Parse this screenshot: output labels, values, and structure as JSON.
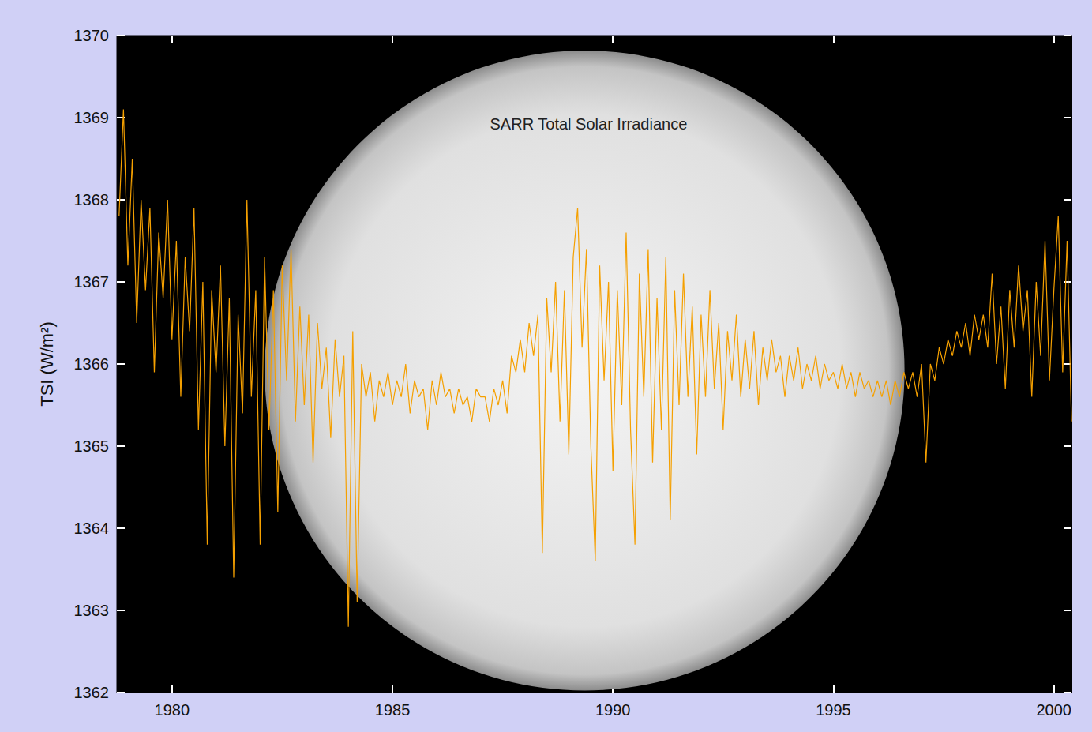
{
  "chart_data": {
    "type": "line",
    "title": "SARR Total Solar Irradiance",
    "ylabel": "TSI (W/m²)",
    "color": "#f5a000",
    "grid": false,
    "xlim": [
      1978.75,
      2000.4
    ],
    "xticks": [
      1980,
      1985,
      1990,
      1995,
      2000
    ],
    "ylim": [
      1362,
      1370
    ],
    "yticks": [
      1362,
      1363,
      1364,
      1365,
      1366,
      1367,
      1368,
      1369,
      1370
    ],
    "x": [
      1978.8,
      1978.9,
      1979.0,
      1979.1,
      1979.2,
      1979.3,
      1979.4,
      1979.5,
      1979.6,
      1979.7,
      1979.8,
      1979.9,
      1980.0,
      1980.1,
      1980.2,
      1980.3,
      1980.4,
      1980.5,
      1980.6,
      1980.7,
      1980.8,
      1980.9,
      1981.0,
      1981.1,
      1981.2,
      1981.3,
      1981.4,
      1981.5,
      1981.6,
      1981.7,
      1981.8,
      1981.9,
      1982.0,
      1982.1,
      1982.2,
      1982.3,
      1982.4,
      1982.5,
      1982.6,
      1982.7,
      1982.8,
      1982.9,
      1983.0,
      1983.1,
      1983.2,
      1983.3,
      1983.4,
      1983.5,
      1983.6,
      1983.7,
      1983.8,
      1983.9,
      1984.0,
      1984.1,
      1984.2,
      1984.3,
      1984.4,
      1984.5,
      1984.6,
      1984.7,
      1984.8,
      1984.9,
      1985.0,
      1985.1,
      1985.2,
      1985.3,
      1985.4,
      1985.5,
      1985.6,
      1985.7,
      1985.8,
      1985.9,
      1986.0,
      1986.1,
      1986.2,
      1986.3,
      1986.4,
      1986.5,
      1986.6,
      1986.7,
      1986.8,
      1986.9,
      1987.0,
      1987.1,
      1987.2,
      1987.3,
      1987.4,
      1987.5,
      1987.6,
      1987.7,
      1987.8,
      1987.9,
      1988.0,
      1988.1,
      1988.2,
      1988.3,
      1988.4,
      1988.5,
      1988.6,
      1988.7,
      1988.8,
      1988.9,
      1989.0,
      1989.1,
      1989.2,
      1989.3,
      1989.4,
      1989.5,
      1989.6,
      1989.7,
      1989.8,
      1989.9,
      1990.0,
      1990.1,
      1990.2,
      1990.3,
      1990.4,
      1990.5,
      1990.6,
      1990.7,
      1990.8,
      1990.9,
      1991.0,
      1991.1,
      1991.2,
      1991.3,
      1991.4,
      1991.5,
      1991.6,
      1991.7,
      1991.8,
      1991.9,
      1992.0,
      1992.1,
      1992.2,
      1992.3,
      1992.4,
      1992.5,
      1992.6,
      1992.7,
      1992.8,
      1992.9,
      1993.0,
      1993.1,
      1993.2,
      1993.3,
      1993.4,
      1993.5,
      1993.6,
      1993.7,
      1993.8,
      1993.9,
      1994.0,
      1994.1,
      1994.2,
      1994.3,
      1994.4,
      1994.5,
      1994.6,
      1994.7,
      1994.8,
      1994.9,
      1995.0,
      1995.1,
      1995.2,
      1995.3,
      1995.4,
      1995.5,
      1995.6,
      1995.7,
      1995.8,
      1995.9,
      1996.0,
      1996.1,
      1996.2,
      1996.3,
      1996.4,
      1996.5,
      1996.6,
      1996.7,
      1996.8,
      1996.9,
      1997.0,
      1997.1,
      1997.2,
      1997.3,
      1997.4,
      1997.5,
      1997.6,
      1997.7,
      1997.8,
      1997.9,
      1998.0,
      1998.1,
      1998.2,
      1998.3,
      1998.4,
      1998.5,
      1998.6,
      1998.7,
      1998.8,
      1998.9,
      1999.0,
      1999.1,
      1999.2,
      1999.3,
      1999.4,
      1999.5,
      1999.6,
      1999.7,
      1999.8,
      1999.9,
      2000.0,
      2000.1,
      2000.2,
      2000.3,
      2000.4
    ],
    "values": [
      1367.8,
      1369.1,
      1367.2,
      1368.5,
      1366.5,
      1368.0,
      1366.9,
      1367.9,
      1365.9,
      1367.6,
      1366.8,
      1368.0,
      1366.3,
      1367.5,
      1365.6,
      1367.3,
      1366.4,
      1367.9,
      1365.2,
      1367.0,
      1363.8,
      1366.9,
      1365.9,
      1367.2,
      1365.0,
      1366.8,
      1363.4,
      1366.6,
      1365.4,
      1368.0,
      1365.6,
      1366.9,
      1363.8,
      1367.3,
      1365.2,
      1366.9,
      1364.2,
      1367.2,
      1365.8,
      1367.4,
      1365.3,
      1366.7,
      1365.5,
      1366.6,
      1364.8,
      1366.5,
      1365.7,
      1366.2,
      1365.1,
      1366.3,
      1365.6,
      1366.1,
      1362.8,
      1366.4,
      1363.1,
      1366.0,
      1365.6,
      1365.9,
      1365.3,
      1365.8,
      1365.6,
      1365.9,
      1365.5,
      1365.8,
      1365.6,
      1366.0,
      1365.4,
      1365.8,
      1365.6,
      1365.7,
      1365.2,
      1365.8,
      1365.5,
      1365.9,
      1365.6,
      1365.7,
      1365.4,
      1365.7,
      1365.5,
      1365.6,
      1365.3,
      1365.7,
      1365.6,
      1365.6,
      1365.3,
      1365.7,
      1365.5,
      1365.8,
      1365.4,
      1366.1,
      1365.9,
      1366.3,
      1365.9,
      1366.5,
      1366.1,
      1366.6,
      1363.7,
      1366.8,
      1365.9,
      1367.0,
      1365.3,
      1366.9,
      1364.9,
      1367.3,
      1367.9,
      1366.2,
      1367.4,
      1365.0,
      1363.6,
      1367.2,
      1365.8,
      1367.0,
      1364.7,
      1366.9,
      1365.5,
      1367.6,
      1365.2,
      1363.8,
      1367.1,
      1365.6,
      1367.4,
      1364.8,
      1366.8,
      1365.2,
      1367.3,
      1364.1,
      1366.9,
      1365.5,
      1367.1,
      1365.6,
      1366.7,
      1364.9,
      1366.6,
      1365.6,
      1366.9,
      1365.7,
      1366.5,
      1365.2,
      1366.4,
      1365.8,
      1366.6,
      1365.6,
      1366.3,
      1365.7,
      1366.4,
      1365.5,
      1366.2,
      1365.8,
      1366.3,
      1365.9,
      1366.1,
      1365.6,
      1366.1,
      1365.8,
      1366.2,
      1365.7,
      1366.0,
      1365.8,
      1366.1,
      1365.7,
      1366.0,
      1365.8,
      1365.9,
      1365.7,
      1366.0,
      1365.7,
      1365.9,
      1365.6,
      1365.9,
      1365.7,
      1365.8,
      1365.6,
      1365.8,
      1365.6,
      1365.8,
      1365.5,
      1365.8,
      1365.6,
      1365.9,
      1365.7,
      1365.9,
      1365.6,
      1366.0,
      1364.8,
      1366.0,
      1365.8,
      1366.2,
      1366.0,
      1366.3,
      1366.1,
      1366.4,
      1366.2,
      1366.5,
      1366.1,
      1366.6,
      1366.3,
      1366.6,
      1366.2,
      1367.1,
      1366.0,
      1366.7,
      1365.7,
      1366.9,
      1366.2,
      1367.2,
      1366.4,
      1366.9,
      1365.6,
      1367.0,
      1366.1,
      1367.5,
      1365.8,
      1366.9,
      1367.8,
      1365.9,
      1367.5,
      1365.3
    ]
  }
}
